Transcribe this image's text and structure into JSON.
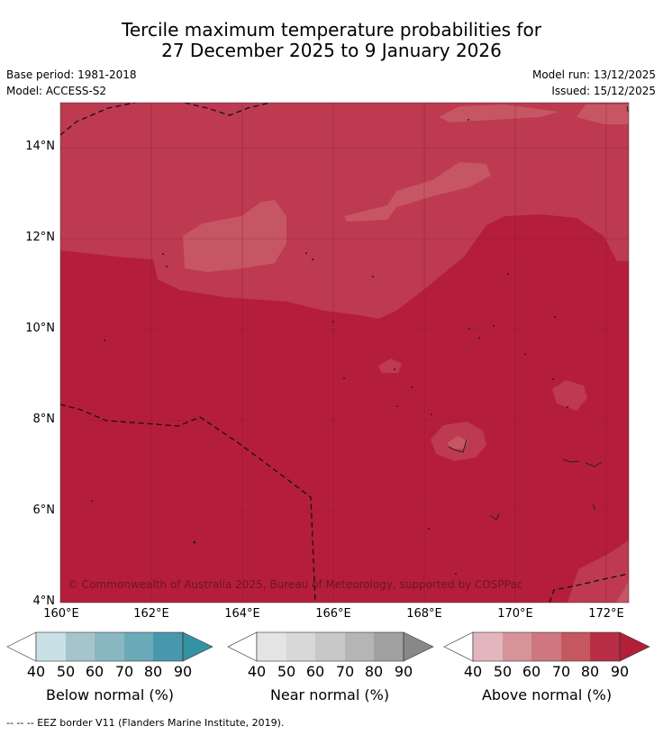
{
  "title": {
    "line1": "Tercile maximum temperature probabilities for",
    "line2": "27 December 2025 to 9 January 2026"
  },
  "meta": {
    "base_period": "Base period: 1981-2018",
    "model": "Model: ACCESS-S2",
    "model_run": "Model run: 13/12/2025",
    "issued": "Issued: 15/12/2025"
  },
  "map": {
    "lat_range": [
      4,
      15
    ],
    "lon_range": [
      160,
      172.5
    ],
    "lat_ticks": [
      "4°N",
      "6°N",
      "8°N",
      "10°N",
      "12°N",
      "14°N"
    ],
    "lon_ticks": [
      "160°E",
      "162°E",
      "164°E",
      "166°E",
      "168°E",
      "170°E",
      "172°E"
    ],
    "copyright": "© Commonwealth of Australia 2025, Bureau of Meteorology, supported by COSPPac",
    "colors": {
      "above_80": "#b51e3a",
      "above_70": "#bd3a50",
      "above_60": "#c65663"
    }
  },
  "colorbars": [
    {
      "label": "Below normal (%)",
      "ticks": [
        "40",
        "50",
        "60",
        "70",
        "80",
        "90"
      ],
      "colors": [
        "#ffffff",
        "#c8e0e6",
        "#a6c5cb",
        "#89b7c2",
        "#6baab9",
        "#4798ad",
        "#3393a5"
      ]
    },
    {
      "label": "Near normal (%)",
      "ticks": [
        "40",
        "50",
        "60",
        "70",
        "80",
        "90"
      ],
      "colors": [
        "#ffffff",
        "#e4e4e4",
        "#d8d8d8",
        "#c8c8c8",
        "#b5b5b5",
        "#a0a0a0",
        "#888888"
      ]
    },
    {
      "label": "Above normal (%)",
      "ticks": [
        "40",
        "50",
        "60",
        "70",
        "80",
        "90"
      ],
      "colors": [
        "#ffffff",
        "#e3b6bd",
        "#d6939a",
        "#cf7780",
        "#c5575f",
        "#b92d44",
        "#b11f3a"
      ]
    }
  ],
  "footer": "--  --  -- EEZ border V11 (Flanders Marine Institute, 2019)."
}
